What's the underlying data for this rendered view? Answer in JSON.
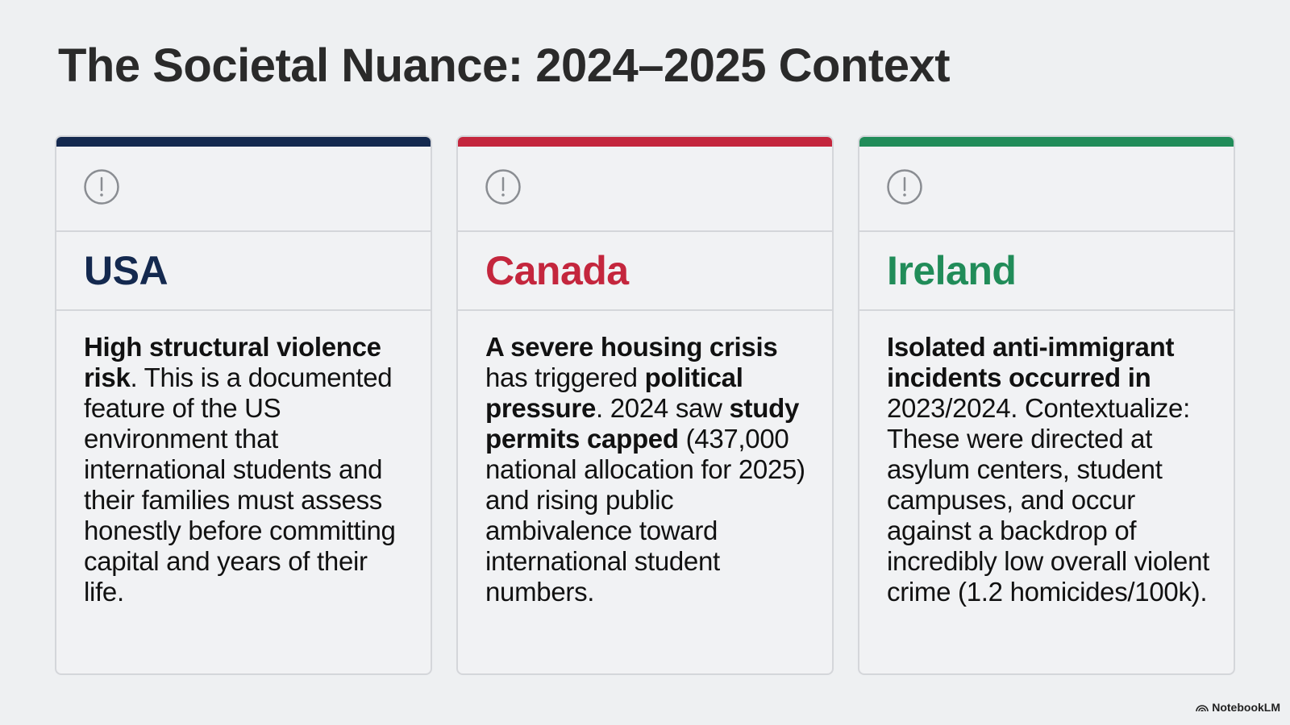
{
  "header": {
    "title": "The Societal Nuance: 2024–2025 Context"
  },
  "cards": [
    {
      "country": "USA",
      "color": "#14294f",
      "body": [
        {
          "text": "High structural violence risk",
          "bold": true
        },
        {
          "text": ". This is a documented feature of the US environment that international students and their families must assess honestly before committing capital and years of their life.",
          "bold": false
        }
      ]
    },
    {
      "country": "Canada",
      "color": "#c4263d",
      "body": [
        {
          "text": "A severe housing crisis",
          "bold": true
        },
        {
          "text": " has triggered ",
          "bold": false
        },
        {
          "text": "political pressure",
          "bold": true
        },
        {
          "text": ". 2024 saw ",
          "bold": false
        },
        {
          "text": "study permits capped",
          "bold": true
        },
        {
          "text": " (437,000 national allocation for 2025) and rising public ambivalence toward international student numbers.",
          "bold": false
        }
      ]
    },
    {
      "country": "Ireland",
      "color": "#218c59",
      "body": [
        {
          "text": "Isolated anti-immigrant incidents occurred in",
          "bold": true
        },
        {
          "text": " 2023/2024. Contextualize: These were directed at asylum centers, student campuses, and occur against a backdrop of incredibly low overall violent crime (1.2 homicides/100k).",
          "bold": false
        }
      ]
    }
  ],
  "footer": {
    "brand": "NotebookLM"
  }
}
